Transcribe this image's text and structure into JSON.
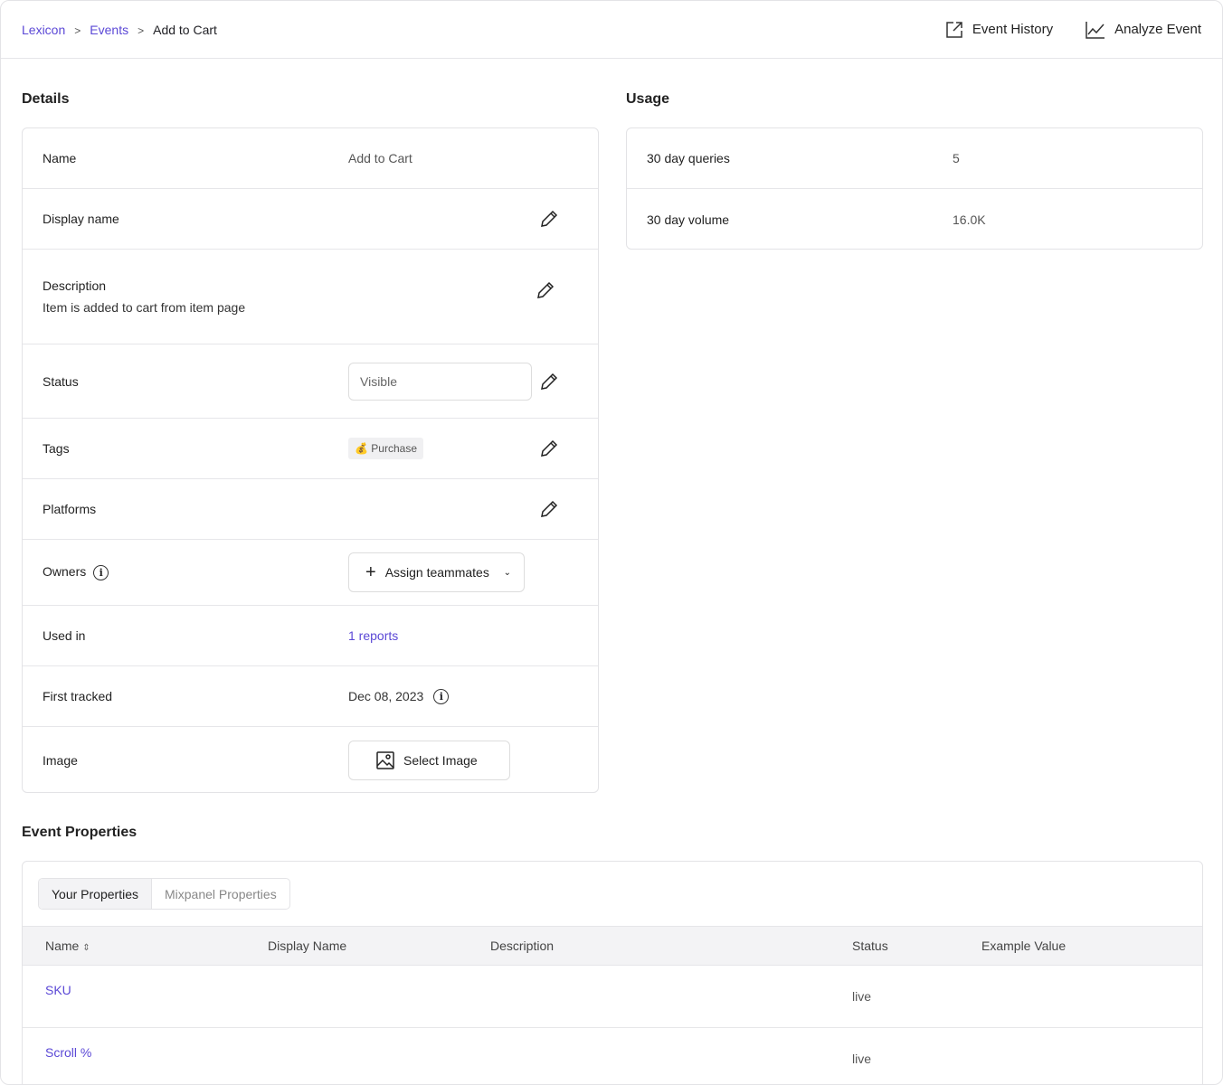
{
  "breadcrumb": {
    "items": [
      "Lexicon",
      "Events"
    ],
    "current": "Add to Cart"
  },
  "header": {
    "event_history": "Event History",
    "analyze_event": "Analyze Event"
  },
  "details": {
    "title": "Details",
    "name_label": "Name",
    "name_value": "Add to Cart",
    "display_name_label": "Display name",
    "description_label": "Description",
    "description_value": "Item is added to cart from item page",
    "status_label": "Status",
    "status_value": "Visible",
    "tags_label": "Tags",
    "tag": "Purchase",
    "tag_emoji": "💰",
    "platforms_label": "Platforms",
    "owners_label": "Owners",
    "assign_button": "Assign teammates",
    "used_in_label": "Used in",
    "used_in_value": "1 reports",
    "first_tracked_label": "First tracked",
    "first_tracked_value": "Dec 08, 2023",
    "image_label": "Image",
    "select_image": "Select Image"
  },
  "usage": {
    "title": "Usage",
    "rows": [
      {
        "label": "30 day queries",
        "value": "5"
      },
      {
        "label": "30 day volume",
        "value": "16.0K"
      }
    ]
  },
  "event_properties": {
    "title": "Event Properties",
    "tabs": [
      "Your Properties",
      "Mixpanel Properties"
    ],
    "columns": [
      "Name",
      "Display Name",
      "Description",
      "Status",
      "Example Value"
    ],
    "rows": [
      {
        "name": "SKU",
        "status": "live"
      },
      {
        "name": "Scroll %",
        "status": "live"
      }
    ]
  },
  "colors": {
    "accent": "#5b48d6"
  }
}
